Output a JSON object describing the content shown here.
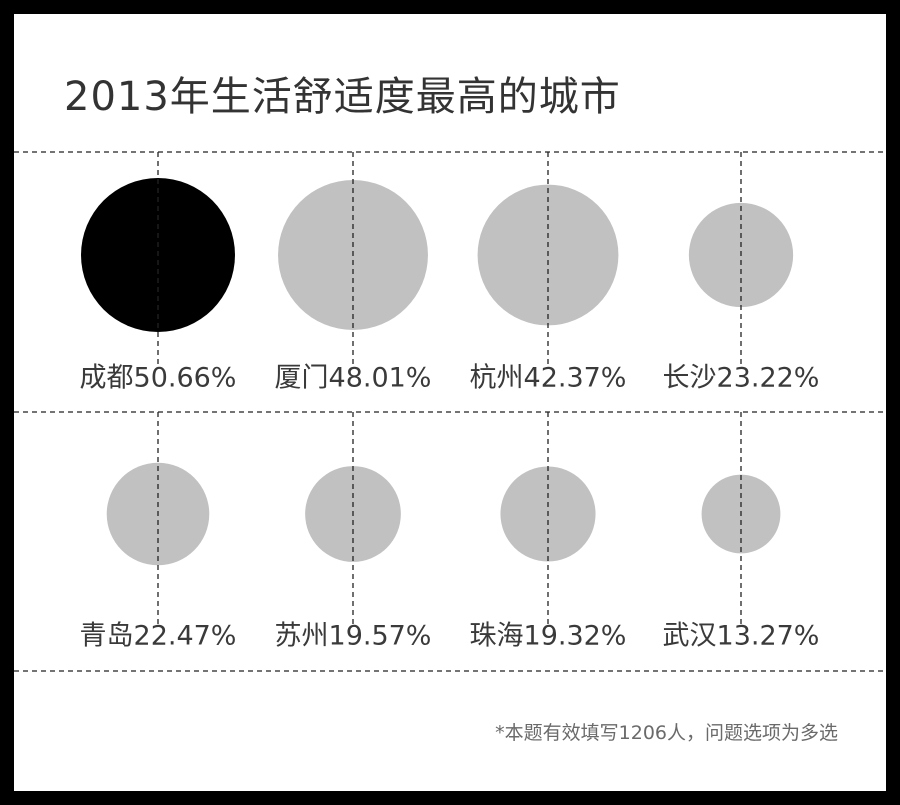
{
  "title": "2013年生活舒适度最高的城市",
  "footnote": "*本题有效填写1206人，问题选项为多选",
  "colors": {
    "highlight": "#000000",
    "bubble": "#c1c1c1",
    "line": "#222222"
  },
  "chart_data": {
    "type": "bubble",
    "title": "2013年生活舒适度最高的城市",
    "value_unit": "%",
    "categories": [
      "成都",
      "厦门",
      "杭州",
      "长沙",
      "青岛",
      "苏州",
      "珠海",
      "武汉"
    ],
    "values": [
      50.66,
      48.01,
      42.37,
      23.22,
      22.47,
      19.57,
      19.32,
      13.27
    ],
    "labels": [
      "成都50.66%",
      "厦门48.01%",
      "杭州42.37%",
      "长沙23.22%",
      "青岛22.47%",
      "苏州19.57%",
      "珠海19.32%",
      "武汉13.27%"
    ],
    "highlighted_category": "成都",
    "grid": true,
    "legend": "none"
  }
}
